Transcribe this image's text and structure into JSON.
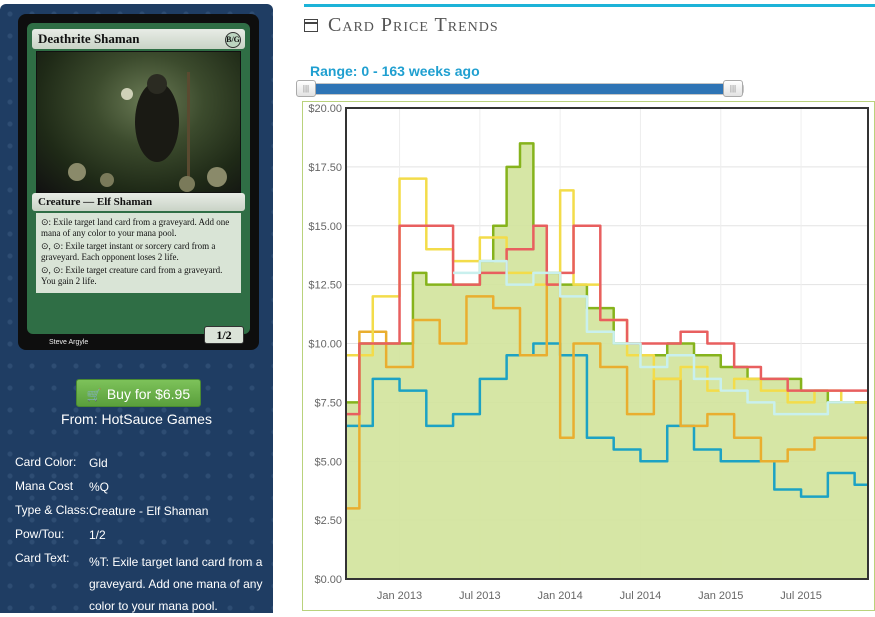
{
  "sidebar": {
    "card": {
      "name": "Deathrite Shaman",
      "mana_symbol": "B/G",
      "type_line": "Creature — Elf Shaman",
      "rules": [
        "⊙: Exile target land card from a graveyard. Add one mana of any color to your mana pool.",
        "⊙, ⊙: Exile target instant or sorcery card from a graveyard. Each opponent loses 2 life.",
        "⊙, ⊙: Exile target creature card from a graveyard. You gain 2 life."
      ],
      "pt": "1/2",
      "artist": "Steve Argyle"
    },
    "buy_label": "Buy for $6.95",
    "from_label": "From: HotSauce Games",
    "info": [
      {
        "label": "Card Color:",
        "value": "Gld"
      },
      {
        "label": "Mana Cost",
        "value": "%Q"
      },
      {
        "label": "Type & Class:",
        "value": "Creature - Elf Shaman"
      },
      {
        "label": "Pow/Tou:",
        "value": "1/2"
      },
      {
        "label": "Card Text:",
        "value": "%T: Exile target land card from a graveyard. Add one mana of any color to your mana pool."
      }
    ]
  },
  "header": {
    "title": "Card Price Trends",
    "icon": "calendar-icon",
    "range_label": "Range: 0 - 163 weeks ago",
    "slider": {
      "min": 0,
      "max": 163,
      "from": 0,
      "to": 163
    }
  },
  "colors": {
    "accent": "#1cb3d8",
    "range_text": "#1f9fd0",
    "sidebar_bg": "#1f3d63",
    "buy_green": "#6ab04c",
    "area_fill": "#d1e39b"
  },
  "chart_data": {
    "type": "line",
    "ylim": [
      0,
      20
    ],
    "yticks": [
      "$0.00",
      "$2.50",
      "$5.00",
      "$7.50",
      "$10.00",
      "$12.50",
      "$15.00",
      "$17.50",
      "$20.00"
    ],
    "xticks": [
      "Jan 2013",
      "Jul 2013",
      "Jan 2014",
      "Jul 2014",
      "Jan 2015",
      "Jul 2015"
    ],
    "xrange": [
      "2012-09",
      "2015-12"
    ],
    "grid": true,
    "series": [
      {
        "color": "#86b31c",
        "fill": "#d1e39b",
        "x": [
          "2012-09",
          "2012-10",
          "2012-12",
          "2013-02",
          "2013-03",
          "2013-05",
          "2013-07",
          "2013-08",
          "2013-09",
          "2013-10",
          "2013-11",
          "2013-12",
          "2014-01",
          "2014-03",
          "2014-05",
          "2014-07",
          "2014-09",
          "2014-11",
          "2015-01",
          "2015-03",
          "2015-05",
          "2015-07",
          "2015-09",
          "2015-11",
          "2015-12"
        ],
        "values": [
          7.5,
          10.0,
          10.0,
          13.0,
          12.5,
          12.5,
          13.5,
          15.0,
          17.5,
          18.5,
          15.0,
          13.0,
          12.5,
          11.5,
          10.0,
          9.5,
          10.0,
          9.5,
          9.0,
          8.5,
          8.5,
          8.0,
          7.5,
          7.5,
          7.5
        ]
      },
      {
        "color": "#1ca2c4",
        "x": [
          "2012-09",
          "2012-11",
          "2013-01",
          "2013-02",
          "2013-03",
          "2013-05",
          "2013-07",
          "2013-09",
          "2013-11",
          "2014-01",
          "2014-02",
          "2014-03",
          "2014-05",
          "2014-07",
          "2014-09",
          "2014-11",
          "2015-01",
          "2015-03",
          "2015-05",
          "2015-07",
          "2015-09",
          "2015-11",
          "2015-12"
        ],
        "values": [
          6.5,
          8.5,
          8.0,
          8.0,
          6.5,
          7.0,
          8.5,
          9.5,
          10.0,
          9.5,
          9.5,
          6.0,
          5.5,
          5.0,
          6.5,
          5.5,
          5.0,
          5.0,
          3.8,
          3.5,
          4.5,
          4.0,
          4.0
        ]
      },
      {
        "color": "#e9ae2f",
        "x": [
          "2012-09",
          "2012-10",
          "2012-12",
          "2013-02",
          "2013-04",
          "2013-06",
          "2013-08",
          "2013-10",
          "2013-12",
          "2014-01",
          "2014-02",
          "2014-04",
          "2014-06",
          "2014-08",
          "2014-10",
          "2014-12",
          "2015-02",
          "2015-04",
          "2015-06",
          "2015-08",
          "2015-10",
          "2015-12"
        ],
        "values": [
          3.0,
          10.5,
          9.0,
          11.0,
          10.0,
          12.0,
          11.5,
          9.5,
          12.5,
          6.0,
          10.0,
          9.0,
          7.0,
          8.5,
          6.5,
          7.0,
          6.0,
          5.0,
          5.5,
          6.0,
          6.0,
          6.0
        ]
      },
      {
        "color": "#f3dc4a",
        "x": [
          "2012-09",
          "2012-11",
          "2013-01",
          "2013-03",
          "2013-05",
          "2013-07",
          "2013-09",
          "2013-11",
          "2014-01",
          "2014-02",
          "2014-04",
          "2014-06",
          "2014-08",
          "2014-10",
          "2014-12",
          "2015-02",
          "2015-04",
          "2015-06",
          "2015-08",
          "2015-10",
          "2015-12"
        ],
        "values": [
          9.5,
          12.0,
          17.0,
          14.0,
          13.5,
          14.5,
          13.0,
          12.5,
          16.5,
          12.5,
          11.0,
          9.5,
          8.5,
          9.0,
          8.0,
          8.5,
          8.0,
          7.5,
          8.0,
          7.5,
          7.5
        ]
      },
      {
        "color": "#e85f5f",
        "x": [
          "2012-09",
          "2012-10",
          "2012-12",
          "2013-01",
          "2013-03",
          "2013-05",
          "2013-07",
          "2013-09",
          "2013-11",
          "2013-12",
          "2014-01",
          "2014-02",
          "2014-04",
          "2014-06",
          "2014-08",
          "2014-10",
          "2014-12",
          "2015-02",
          "2015-04",
          "2015-06",
          "2015-08",
          "2015-10",
          "2015-12"
        ],
        "values": [
          7.0,
          10.0,
          10.0,
          15.0,
          15.0,
          12.5,
          13.0,
          14.0,
          15.0,
          12.5,
          13.0,
          15.0,
          11.0,
          10.0,
          10.0,
          10.5,
          10.0,
          9.0,
          8.5,
          8.0,
          8.0,
          8.0,
          8.0
        ]
      },
      {
        "color": "#c9f0ee",
        "x": [
          "2013-05",
          "2013-07",
          "2013-09",
          "2013-11",
          "2014-01",
          "2014-03",
          "2014-05",
          "2014-07",
          "2014-09",
          "2014-11",
          "2015-01",
          "2015-03",
          "2015-05",
          "2015-07",
          "2015-09",
          "2015-11"
        ],
        "values": [
          13.0,
          13.5,
          12.5,
          13.0,
          12.0,
          10.5,
          10.0,
          9.0,
          9.5,
          8.5,
          8.0,
          7.5,
          7.0,
          7.0,
          7.5,
          7.5
        ]
      }
    ]
  }
}
